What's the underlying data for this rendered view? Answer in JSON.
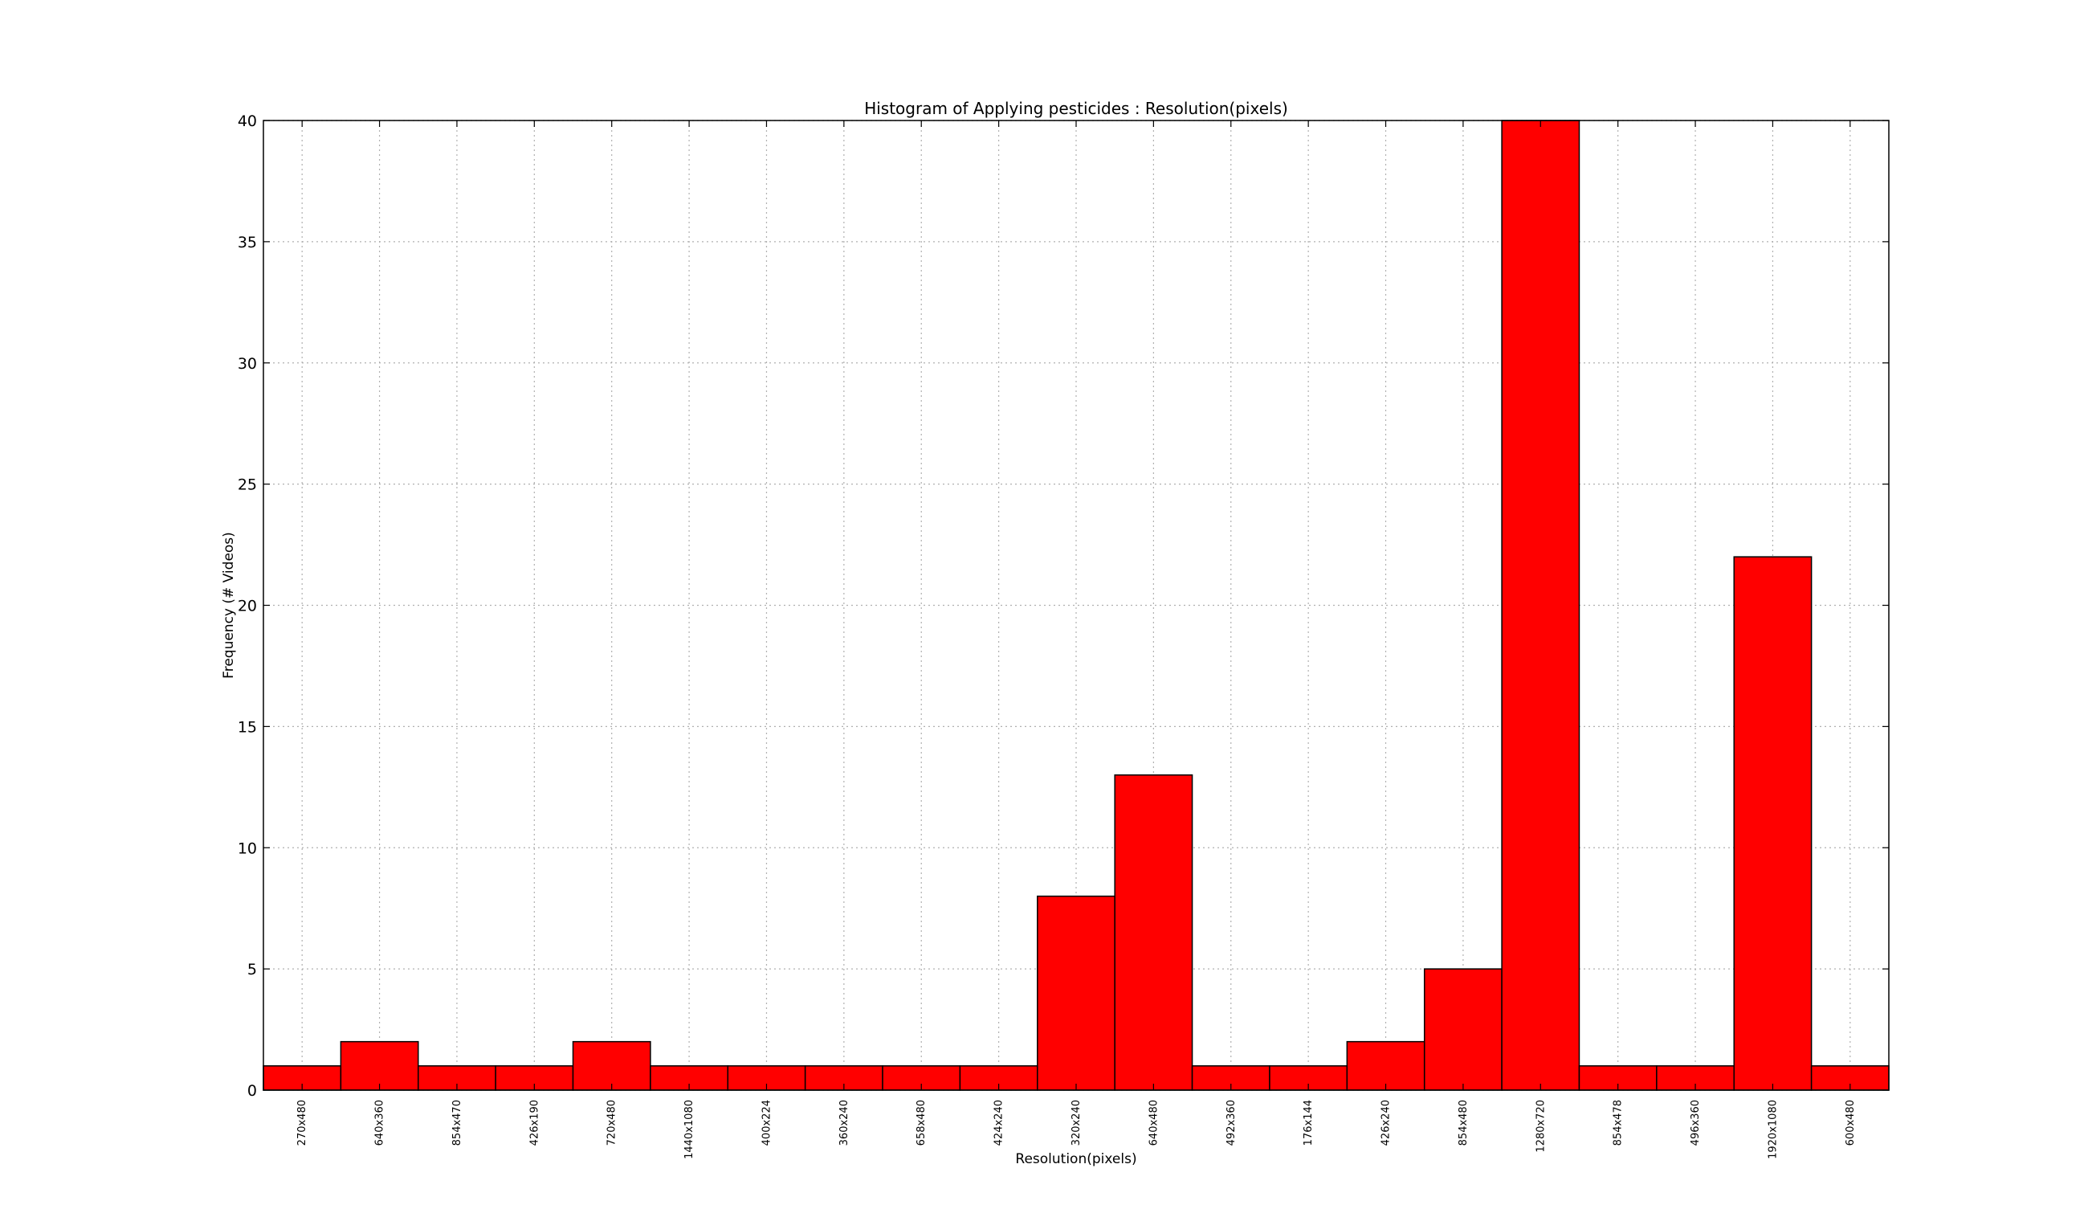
{
  "chart_data": {
    "type": "bar",
    "title": "Histogram of Applying pesticides : Resolution(pixels)",
    "xlabel": "Resolution(pixels)",
    "ylabel": "Frequency (# Videos)",
    "categories": [
      "270x480",
      "640x360",
      "854x470",
      "426x190",
      "720x480",
      "1440x1080",
      "400x224",
      "360x240",
      "658x480",
      "424x240",
      "320x240",
      "640x480",
      "492x360",
      "176x144",
      "426x240",
      "854x480",
      "1280x720",
      "854x478",
      "496x360",
      "1920x1080",
      "600x480"
    ],
    "values": [
      1,
      2,
      1,
      1,
      2,
      1,
      1,
      1,
      1,
      1,
      8,
      13,
      1,
      1,
      2,
      5,
      40,
      1,
      1,
      22,
      1
    ],
    "ylim": [
      0,
      40
    ],
    "yticks": [
      0,
      5,
      10,
      15,
      20,
      25,
      30,
      35,
      40
    ],
    "grid": true,
    "bar_color": "#ff0000"
  }
}
